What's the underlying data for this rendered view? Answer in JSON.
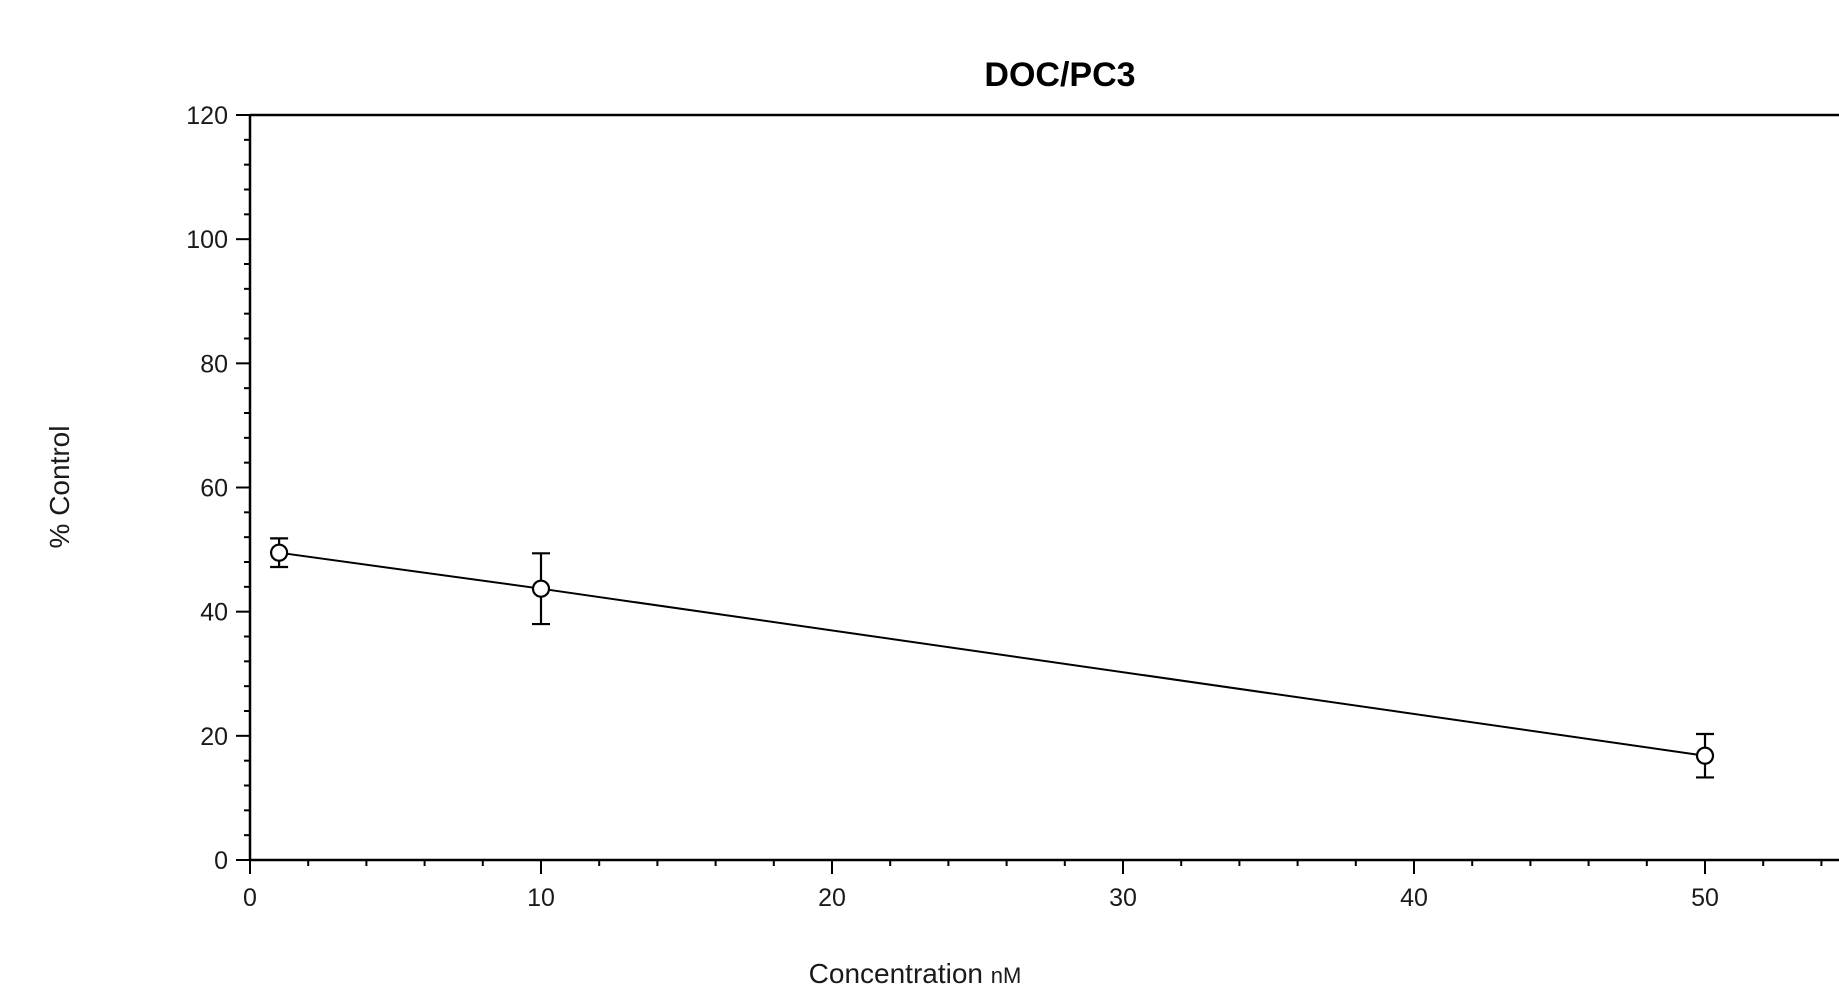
{
  "chart_data": {
    "type": "line",
    "title": "DOC/PC3",
    "xlabel": "Concentration",
    "xlabel_unit": "nM",
    "ylabel": "% Control",
    "xlim": [
      0,
      55
    ],
    "ylim": [
      0,
      120
    ],
    "xticks": [
      0,
      10,
      20,
      30,
      40,
      50
    ],
    "yticks": [
      0,
      20,
      40,
      60,
      80,
      100,
      120
    ],
    "grid": false,
    "series": [
      {
        "x": [
          1,
          10,
          50
        ],
        "y": [
          49.5,
          43.7,
          16.8
        ],
        "error": [
          2.3,
          5.7,
          3.5
        ]
      }
    ]
  }
}
